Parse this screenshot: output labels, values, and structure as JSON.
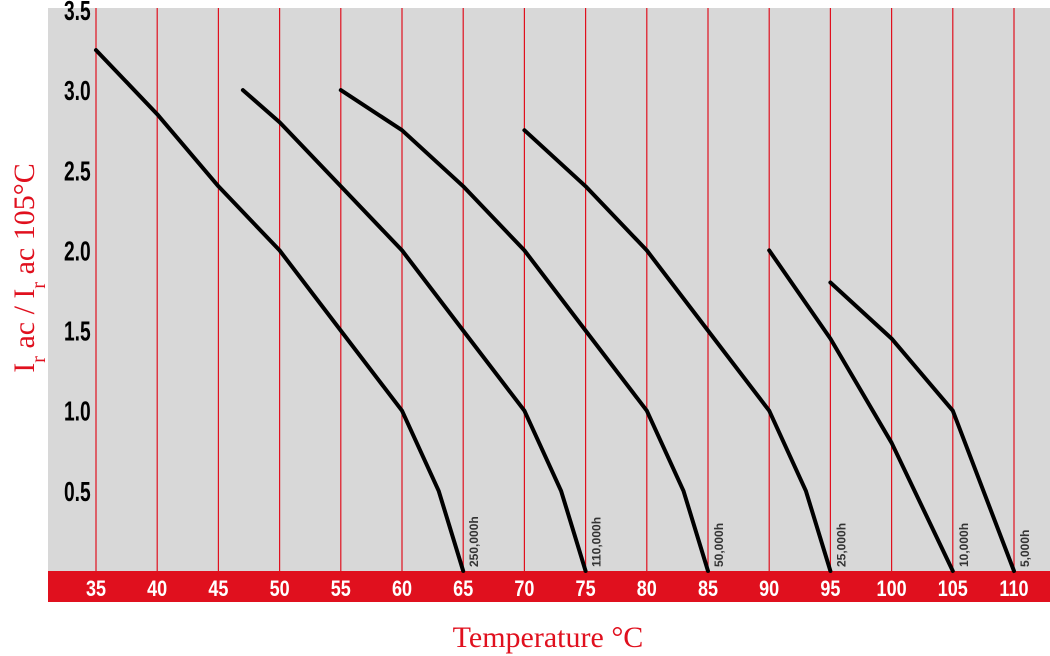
{
  "chart_data": {
    "type": "line",
    "title": "",
    "xlabel": "Temperature °C",
    "ylabel": {
      "part1": "I",
      "sub1": "r",
      "part2": " ac / I",
      "sub2": "r",
      "part3": " ac 105°C"
    },
    "xlim": [
      35,
      110
    ],
    "ylim": [
      0,
      3.5
    ],
    "x_ticks": [
      "35",
      "40",
      "45",
      "50",
      "55",
      "60",
      "65",
      "70",
      "75",
      "80",
      "85",
      "90",
      "95",
      "100",
      "105",
      "110"
    ],
    "y_ticks": [
      "0.5",
      "1.0",
      "1.5",
      "2.0",
      "2.5",
      "3.0",
      "3.5"
    ],
    "grid": "vertical",
    "colors": {
      "plot_bg": "#d8d8d8",
      "grid": "#e0101e",
      "axis_band": "#e0101e",
      "line": "#000000"
    },
    "series": [
      {
        "name": "250,000h",
        "points": [
          [
            35,
            3.25
          ],
          [
            40,
            2.85
          ],
          [
            45,
            2.4
          ],
          [
            50,
            2.0
          ],
          [
            55,
            1.5
          ],
          [
            60,
            1.0
          ],
          [
            63,
            0.5
          ],
          [
            65,
            0.0
          ]
        ]
      },
      {
        "name": "110,000h",
        "points": [
          [
            47,
            3.0
          ],
          [
            50,
            2.8
          ],
          [
            55,
            2.4
          ],
          [
            60,
            2.0
          ],
          [
            65,
            1.5
          ],
          [
            70,
            1.0
          ],
          [
            73,
            0.5
          ],
          [
            75,
            0.0
          ]
        ]
      },
      {
        "name": "50,000h",
        "points": [
          [
            55,
            3.0
          ],
          [
            60,
            2.75
          ],
          [
            65,
            2.4
          ],
          [
            70,
            2.0
          ],
          [
            75,
            1.5
          ],
          [
            80,
            1.0
          ],
          [
            83,
            0.5
          ],
          [
            85,
            0.0
          ]
        ]
      },
      {
        "name": "25,000h",
        "points": [
          [
            70,
            2.75
          ],
          [
            75,
            2.4
          ],
          [
            80,
            2.0
          ],
          [
            85,
            1.5
          ],
          [
            90,
            1.0
          ],
          [
            93,
            0.5
          ],
          [
            95,
            0.0
          ]
        ]
      },
      {
        "name": "10,000h",
        "points": [
          [
            90,
            2.0
          ],
          [
            95,
            1.45
          ],
          [
            100,
            0.8
          ],
          [
            105,
            0.0
          ]
        ]
      },
      {
        "name": "5,000h",
        "points": [
          [
            95,
            1.8
          ],
          [
            100,
            1.45
          ],
          [
            105,
            1.0
          ],
          [
            110,
            0.0
          ]
        ]
      }
    ]
  }
}
